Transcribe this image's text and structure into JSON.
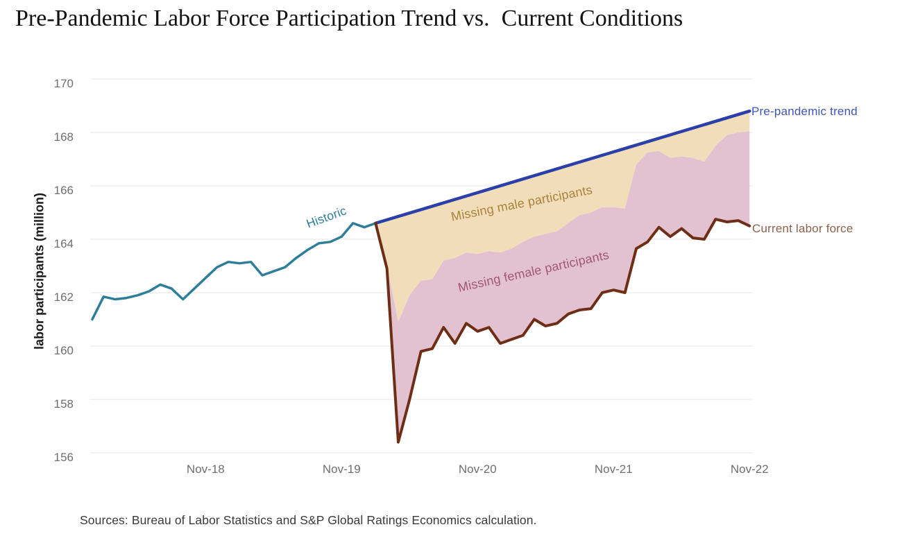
{
  "title": "Pre-Pandemic Labor Force Participation Trend vs.  Current Conditions",
  "source": "Sources: Bureau of Labor Statistics and S&P Global Ratings Economics calculation.",
  "annotations": {
    "historic": "Historic",
    "missing_male": "Missing male participants",
    "missing_female": "Missing female participants",
    "trend": "Pre-pandemic trend",
    "current": "Current labor force"
  },
  "colors": {
    "historic_line": "#2e7d99",
    "trend_line": "#2b3fa9",
    "current_line": "#6e2e16",
    "missing_male_fill": "#f2ddbb",
    "missing_female_fill": "#e2c2d0",
    "missing_male_text": "#a9813e",
    "missing_female_text": "#a25673",
    "trend_label_text": "#3d56b8",
    "current_label_text": "#8d5f4b",
    "axis_text": "#6e6e6e",
    "gridline": "#eaeaea",
    "title_text": "#111111",
    "source_text": "#3a3a3a"
  },
  "chart_data": {
    "type": "line",
    "title": "Pre-Pandemic Labor Force Participation Trend vs. Current Conditions",
    "ylabel": "labor participants (million)",
    "ylim": [
      156,
      170
    ],
    "y_ticks": [
      170,
      168,
      166,
      164,
      162,
      160,
      158,
      156
    ],
    "x_tick_labels": [
      "Nov-18",
      "Nov-19",
      "Nov-20",
      "Nov-21",
      "Nov-22"
    ],
    "frequency": "monthly",
    "grid": "horizontal-only",
    "series": [
      {
        "name": "Historic",
        "months": [
          "Jan-18",
          "Feb-18",
          "Mar-18",
          "Apr-18",
          "May-18",
          "Jun-18",
          "Jul-18",
          "Aug-18",
          "Sep-18",
          "Oct-18",
          "Nov-18",
          "Dec-18",
          "Jan-19",
          "Feb-19",
          "Mar-19",
          "Apr-19",
          "May-19",
          "Jun-19",
          "Jul-19",
          "Aug-19",
          "Sep-19",
          "Oct-19",
          "Nov-19",
          "Dec-19",
          "Jan-20",
          "Feb-20"
        ],
        "values": [
          161.0,
          161.85,
          161.75,
          161.8,
          161.9,
          162.05,
          162.3,
          162.15,
          161.75,
          162.15,
          162.55,
          162.95,
          163.15,
          163.1,
          163.15,
          162.65,
          162.8,
          162.95,
          163.3,
          163.6,
          163.85,
          163.9,
          164.1,
          164.6,
          164.45,
          164.6
        ]
      },
      {
        "name": "Current labor force",
        "months": [
          "Feb-20",
          "Mar-20",
          "Apr-20",
          "May-20",
          "Jun-20",
          "Jul-20",
          "Aug-20",
          "Sep-20",
          "Oct-20",
          "Nov-20",
          "Dec-20",
          "Jan-21",
          "Feb-21",
          "Mar-21",
          "Apr-21",
          "May-21",
          "Jun-21",
          "Jul-21",
          "Aug-21",
          "Sep-21",
          "Oct-21",
          "Nov-21",
          "Dec-21",
          "Jan-22",
          "Feb-22",
          "Mar-22",
          "Apr-22",
          "May-22",
          "Jun-22",
          "Jul-22",
          "Aug-22",
          "Sep-22",
          "Oct-22",
          "Nov-22"
        ],
        "values": [
          164.6,
          162.9,
          156.4,
          158.0,
          159.8,
          159.9,
          160.7,
          160.1,
          160.85,
          160.55,
          160.7,
          160.1,
          160.25,
          160.4,
          161.0,
          160.75,
          160.85,
          161.2,
          161.35,
          161.4,
          162.0,
          162.1,
          162.0,
          163.65,
          163.9,
          164.45,
          164.1,
          164.4,
          164.05,
          164.0,
          164.75,
          164.65,
          164.7,
          164.5
        ]
      },
      {
        "name": "Pre-pandemic trend",
        "note": "straight line between endpoints",
        "months": [
          "Feb-20",
          "Nov-22"
        ],
        "values": [
          164.6,
          168.8
        ]
      },
      {
        "name": "Upper edge of missing-female area (current labor force + missing female participants)",
        "months": [
          "Feb-20",
          "Mar-20",
          "Apr-20",
          "May-20",
          "Jun-20",
          "Jul-20",
          "Aug-20",
          "Sep-20",
          "Oct-20",
          "Nov-20",
          "Dec-20",
          "Jan-21",
          "Feb-21",
          "Mar-21",
          "Apr-21",
          "May-21",
          "Jun-21",
          "Jul-21",
          "Aug-21",
          "Sep-21",
          "Oct-21",
          "Nov-21",
          "Dec-21",
          "Jan-22",
          "Feb-22",
          "Mar-22",
          "Apr-22",
          "May-22",
          "Jun-22",
          "Jul-22",
          "Aug-22",
          "Sep-22",
          "Oct-22",
          "Nov-22"
        ],
        "values": [
          164.6,
          163.0,
          160.9,
          161.9,
          162.45,
          162.5,
          163.2,
          163.3,
          163.5,
          163.45,
          163.55,
          163.5,
          163.65,
          163.9,
          164.1,
          164.2,
          164.3,
          164.6,
          164.9,
          165.0,
          165.2,
          165.2,
          165.15,
          166.8,
          167.25,
          167.3,
          167.05,
          167.1,
          167.05,
          166.9,
          167.5,
          167.9,
          168.0,
          168.05
        ]
      }
    ],
    "areas": [
      {
        "name": "Missing male participants",
        "between": [
          "Pre-pandemic trend",
          "Upper edge of missing-female area"
        ]
      },
      {
        "name": "Missing female participants",
        "between": [
          "Upper edge of missing-female area",
          "Current labor force"
        ]
      }
    ]
  }
}
